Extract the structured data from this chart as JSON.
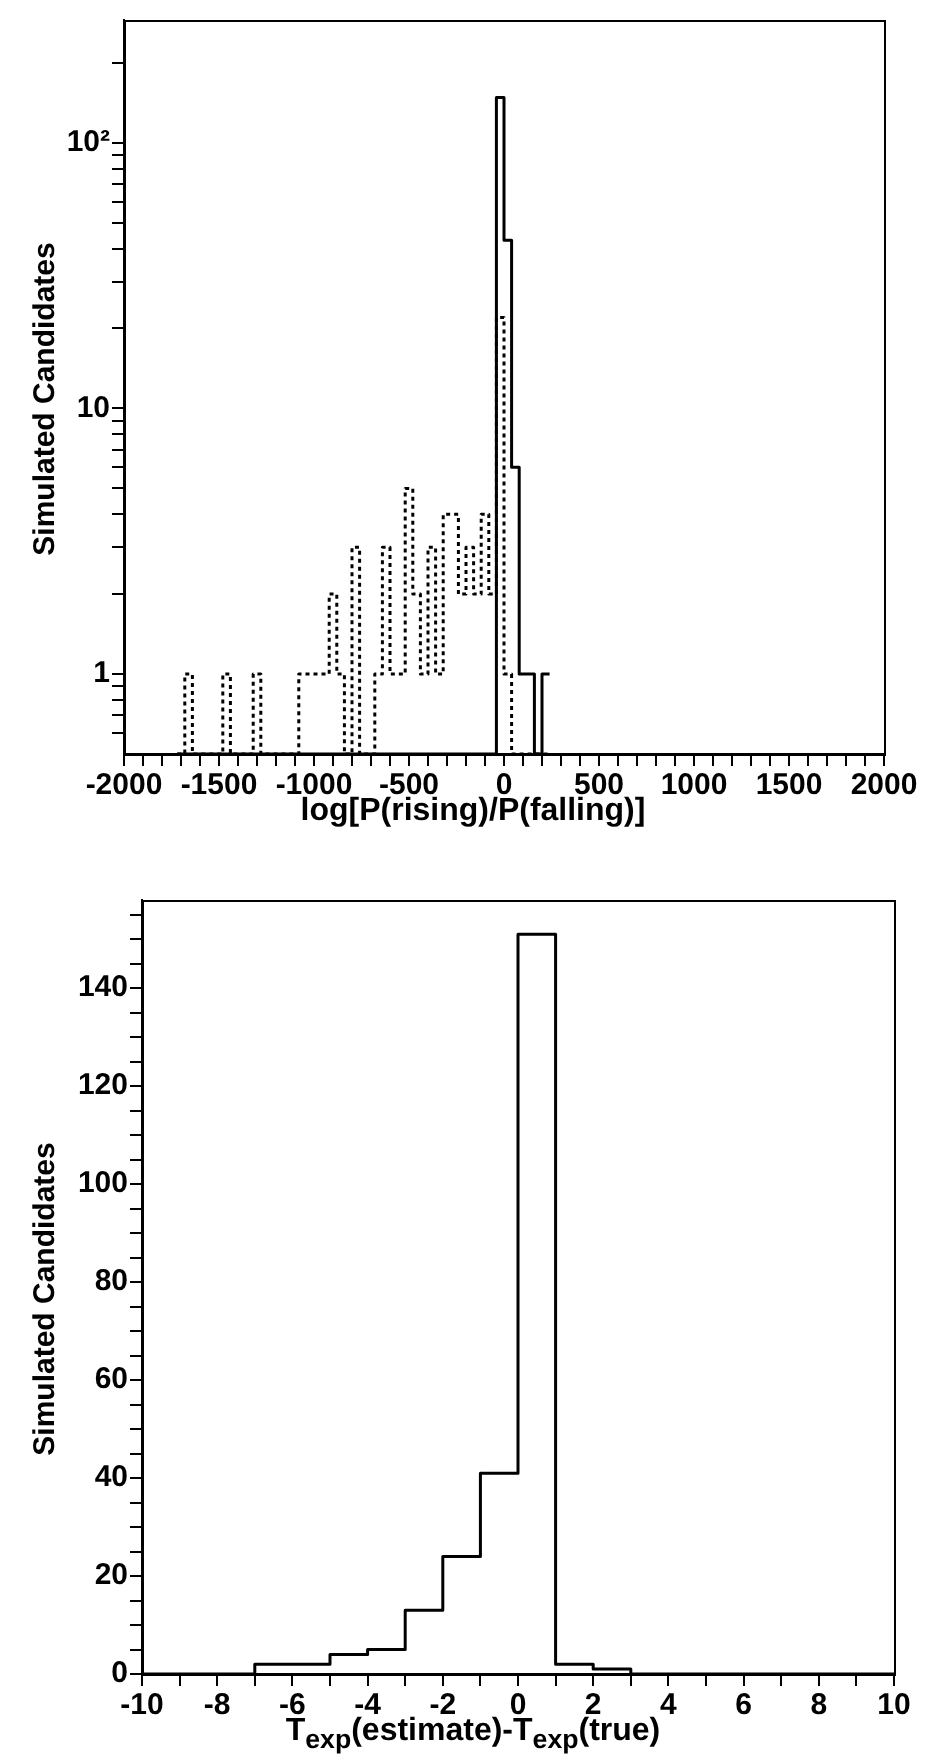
{
  "chart_data": [
    {
      "type": "histogram",
      "xlabel": "log[P(rising)/P(falling)]",
      "ylabel": "Simulated Candidates",
      "log": "y",
      "bins": [
        -1720,
        -1680,
        -1640,
        -1600,
        -1560,
        -1520,
        -1480,
        -1440,
        -1400,
        -1360,
        -1320,
        -1280,
        -1240,
        -1200,
        -1160,
        -1120,
        -1080,
        -1040,
        -1000,
        -960,
        -920,
        -880,
        -840,
        -800,
        -760,
        -720,
        -680,
        -640,
        -600,
        -560,
        -520,
        -480,
        -440,
        -400,
        -360,
        -320,
        -280,
        -240,
        -200,
        -160,
        -120,
        -80,
        -40,
        0,
        40,
        80,
        120,
        160,
        200,
        240
      ],
      "series": [
        {
          "color": "#000000",
          "line_style": "solid",
          "values": [
            null,
            null,
            null,
            null,
            null,
            null,
            null,
            null,
            null,
            null,
            null,
            null,
            null,
            null,
            null,
            null,
            null,
            null,
            null,
            null,
            null,
            null,
            null,
            null,
            null,
            null,
            null,
            null,
            null,
            null,
            null,
            null,
            null,
            null,
            null,
            null,
            null,
            null,
            null,
            null,
            null,
            null,
            148,
            43,
            6,
            1,
            1,
            null,
            1
          ]
        },
        {
          "color": "#000000",
          "line_style": "dotted",
          "values": [
            null,
            1,
            null,
            null,
            null,
            null,
            1,
            null,
            null,
            null,
            1,
            null,
            null,
            null,
            null,
            null,
            1,
            1,
            1,
            1,
            2,
            1,
            null,
            3,
            null,
            null,
            1,
            3,
            1,
            1,
            5,
            2,
            1,
            3,
            1,
            4,
            4,
            2,
            3,
            2,
            4,
            2,
            22,
            1,
            null,
            null,
            null,
            null,
            null
          ]
        }
      ],
      "xlim": [
        -2000,
        2000
      ],
      "xticks": [
        -2000,
        {
          "value": -1900,
          "label": null
        },
        {
          "value": -1800,
          "label": null
        },
        {
          "value": -1700,
          "label": null
        },
        {
          "value": -1600,
          "label": null
        },
        -1500,
        {
          "value": -1400,
          "label": null
        },
        {
          "value": -1300,
          "label": null
        },
        {
          "value": -1200,
          "label": null
        },
        {
          "value": -1100,
          "label": null
        },
        -1000,
        {
          "value": -900,
          "label": null
        },
        {
          "value": -800,
          "label": null
        },
        {
          "value": -700,
          "label": null
        },
        {
          "value": -600,
          "label": null
        },
        -500,
        {
          "value": -400,
          "label": null
        },
        {
          "value": -300,
          "label": null
        },
        {
          "value": -200,
          "label": null
        },
        {
          "value": -100,
          "label": null
        },
        0,
        {
          "value": 100,
          "label": null
        },
        {
          "value": 200,
          "label": null
        },
        {
          "value": 300,
          "label": null
        },
        {
          "value": 400,
          "label": null
        },
        500,
        {
          "value": 600,
          "label": null
        },
        {
          "value": 700,
          "label": null
        },
        {
          "value": 800,
          "label": null
        },
        {
          "value": 900,
          "label": null
        },
        1000,
        {
          "value": 1100,
          "label": null
        },
        {
          "value": 1200,
          "label": null
        },
        {
          "value": 1300,
          "label": null
        },
        {
          "value": 1400,
          "label": null
        },
        1500,
        {
          "value": 1600,
          "label": null
        },
        {
          "value": 1700,
          "label": null
        },
        {
          "value": 1800,
          "label": null
        },
        {
          "value": 1900,
          "label": null
        },
        2000
      ],
      "ylim": [
        0.5,
        290
      ],
      "yticks": [
        {
          "value": 0.6,
          "label": null
        },
        {
          "value": 0.7,
          "label": null
        },
        {
          "value": 0.8,
          "label": null
        },
        {
          "value": 0.9,
          "label": null
        },
        1,
        {
          "value": 2,
          "label": null
        },
        {
          "value": 3,
          "label": null
        },
        {
          "value": 4,
          "label": null
        },
        {
          "value": 5,
          "label": null
        },
        {
          "value": 6,
          "label": null
        },
        {
          "value": 7,
          "label": null
        },
        {
          "value": 8,
          "label": null
        },
        {
          "value": 9,
          "label": null
        },
        10,
        {
          "value": 20,
          "label": null
        },
        {
          "value": 30,
          "label": null
        },
        {
          "value": 40,
          "label": null
        },
        {
          "value": 50,
          "label": null
        },
        {
          "value": 60,
          "label": null
        },
        {
          "value": 70,
          "label": null
        },
        {
          "value": 80,
          "label": null
        },
        {
          "value": 90,
          "label": null
        },
        {
          "value": 100,
          "label": "10²"
        },
        {
          "value": 200,
          "label": null
        }
      ],
      "grid": false,
      "legend": false
    },
    {
      "type": "histogram",
      "xlabel": "T$_{exp}$(estimate)-T$_{exp}$(true)",
      "ylabel": "Simulated Candidates",
      "bins": [
        -10,
        -9,
        -8,
        -7,
        -6,
        -5,
        -4,
        -3,
        -2,
        -1,
        0,
        1,
        2,
        3,
        4,
        5,
        6,
        7,
        8,
        9,
        10
      ],
      "series": [
        {
          "color": "#000000",
          "line_style": "solid",
          "values": [
            0,
            0,
            0,
            2,
            2,
            4,
            5,
            13,
            24,
            41,
            151,
            2,
            1,
            0,
            0,
            0,
            0,
            0,
            0,
            0
          ]
        }
      ],
      "xlim": [
        -10,
        10
      ],
      "xticks": [
        -10,
        {
          "value": -9,
          "label": null
        },
        -8,
        {
          "value": -7,
          "label": null
        },
        -6,
        {
          "value": -5,
          "label": null
        },
        -4,
        {
          "value": -3,
          "label": null
        },
        -2,
        {
          "value": -1,
          "label": null
        },
        0,
        {
          "value": 1,
          "label": null
        },
        2,
        {
          "value": 3,
          "label": null
        },
        4,
        {
          "value": 5,
          "label": null
        },
        6,
        {
          "value": 7,
          "label": null
        },
        8,
        {
          "value": 9,
          "label": null
        },
        10
      ],
      "ylim": [
        0,
        158
      ],
      "yticks": [
        0,
        {
          "value": 5,
          "label": null
        },
        {
          "value": 10,
          "label": null
        },
        {
          "value": 15,
          "label": null
        },
        20,
        {
          "value": 25,
          "label": null
        },
        {
          "value": 30,
          "label": null
        },
        {
          "value": 35,
          "label": null
        },
        40,
        {
          "value": 45,
          "label": null
        },
        {
          "value": 50,
          "label": null
        },
        {
          "value": 55,
          "label": null
        },
        60,
        {
          "value": 65,
          "label": null
        },
        {
          "value": 70,
          "label": null
        },
        {
          "value": 75,
          "label": null
        },
        80,
        {
          "value": 85,
          "label": null
        },
        {
          "value": 90,
          "label": null
        },
        {
          "value": 95,
          "label": null
        },
        100,
        {
          "value": 105,
          "label": null
        },
        {
          "value": 110,
          "label": null
        },
        {
          "value": 115,
          "label": null
        },
        120,
        {
          "value": 125,
          "label": null
        },
        {
          "value": 130,
          "label": null
        },
        {
          "value": 135,
          "label": null
        },
        140,
        {
          "value": 145,
          "label": null
        },
        {
          "value": 150,
          "label": null
        },
        {
          "value": 155,
          "label": null
        }
      ],
      "grid": false,
      "legend": false
    }
  ]
}
